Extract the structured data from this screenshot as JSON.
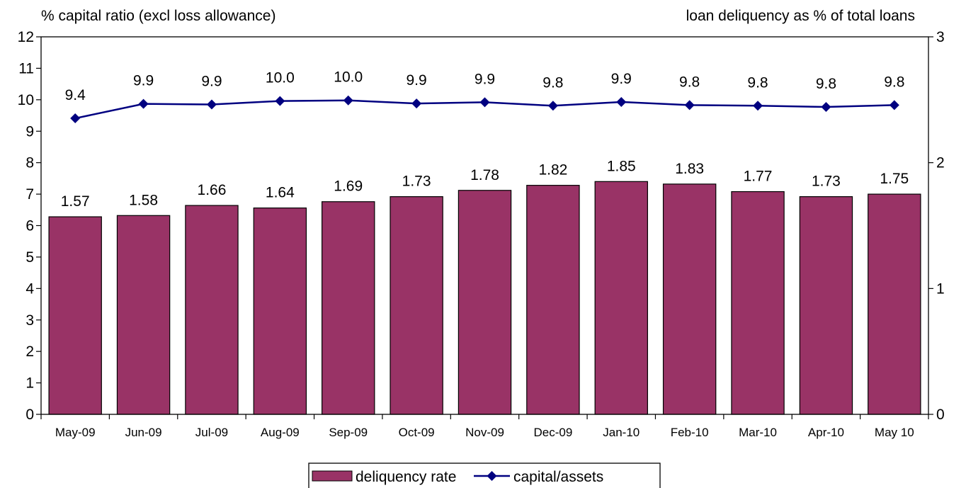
{
  "chart_data": {
    "type": "bar",
    "left_axis_title": "% capital ratio (excl loss allowance)",
    "right_axis_title": "loan deliquency as % of total loans",
    "categories": [
      "May-09",
      "Jun-09",
      "Jul-09",
      "Aug-09",
      "Sep-09",
      "Oct-09",
      "Nov-09",
      "Dec-09",
      "Jan-10",
      "Feb-10",
      "Mar-10",
      "Apr-10",
      "May 10"
    ],
    "y_left": {
      "min": 0,
      "max": 12,
      "ticks": [
        "0",
        "1",
        "2",
        "3",
        "4",
        "5",
        "6",
        "7",
        "8",
        "9",
        "10",
        "11",
        "12"
      ]
    },
    "y_right": {
      "min": 0,
      "max": 3,
      "ticks": [
        "0",
        "1",
        "2",
        "3"
      ]
    },
    "series": [
      {
        "name": "deliquency rate",
        "kind": "bar",
        "axis": "right",
        "color": "#993366",
        "values": [
          1.57,
          1.58,
          1.66,
          1.64,
          1.69,
          1.73,
          1.78,
          1.82,
          1.85,
          1.83,
          1.77,
          1.73,
          1.75
        ],
        "labels": [
          "1.57",
          "1.58",
          "1.66",
          "1.64",
          "1.69",
          "1.73",
          "1.78",
          "1.82",
          "1.85",
          "1.83",
          "1.77",
          "1.73",
          "1.75"
        ]
      },
      {
        "name": "capital/assets",
        "kind": "line",
        "axis": "left",
        "color": "#000080",
        "values": [
          9.41,
          9.87,
          9.85,
          9.96,
          9.98,
          9.88,
          9.92,
          9.81,
          9.93,
          9.83,
          9.81,
          9.77,
          9.83
        ],
        "labels": [
          "9.4",
          "9.9",
          "9.9",
          "10.0",
          "10.0",
          "9.9",
          "9.9",
          "9.8",
          "9.9",
          "9.8",
          "9.8",
          "9.8",
          "9.8"
        ]
      }
    ],
    "legend": {
      "position": "bottom-center",
      "items": [
        "deliquency rate",
        "capital/assets"
      ]
    },
    "grid": false
  }
}
